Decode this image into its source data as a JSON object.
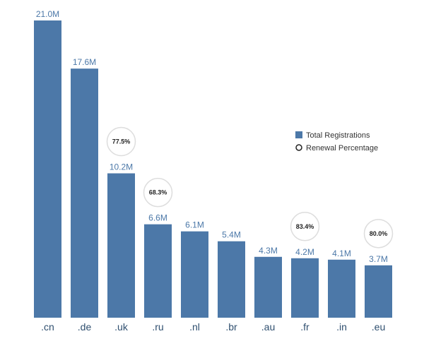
{
  "chart_data": {
    "type": "bar",
    "categories": [
      ".cn",
      ".de",
      ".uk",
      ".ru",
      ".nl",
      ".br",
      ".au",
      ".fr",
      ".in",
      ".eu"
    ],
    "series": [
      {
        "name": "Total Registrations",
        "values": [
          21.0,
          17.6,
          10.2,
          6.6,
          6.1,
          5.4,
          4.3,
          4.2,
          4.1,
          3.7
        ],
        "labels": [
          "21.0M",
          "17.6M",
          "10.2M",
          "6.6M",
          "6.1M",
          "5.4M",
          "4.3M",
          "4.2M",
          "4.1M",
          "3.7M"
        ]
      },
      {
        "name": "Renewal Percentage",
        "values": [
          null,
          null,
          77.5,
          68.3,
          null,
          null,
          null,
          83.4,
          null,
          80.0
        ],
        "labels": [
          null,
          null,
          "77.5%",
          "68.3%",
          null,
          null,
          null,
          "83.4%",
          null,
          "80.0%"
        ]
      }
    ],
    "ylim": [
      0,
      21.0
    ],
    "grid": false,
    "legend_position": "right",
    "colors": {
      "bar": "#4c78a8",
      "label": "#4c78a8",
      "circle_stroke": "#dddddd"
    }
  }
}
